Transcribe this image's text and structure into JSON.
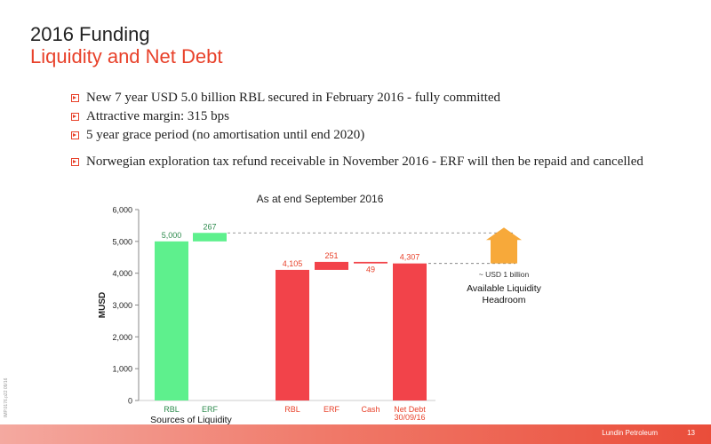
{
  "slide": {
    "title": "2016 Funding",
    "subtitle": "Liquidity and Net Debt",
    "bullets": [
      "New 7 year USD 5.0 billion RBL secured in February 2016 - fully committed",
      "Attractive margin: 315 bps",
      "5 year grace period (no amortisation until end 2020)",
      "Norwegian exploration tax refund receivable in November 2016 - ERF will then be repaid and cancelled"
    ],
    "footer_brand": "Lundin Petroleum",
    "page_number": "13",
    "side_code": "IMP.0176.p22 09/16"
  },
  "colors": {
    "green": "#5ef08d",
    "red": "#f2434a",
    "orange": "#f7a93a",
    "accent": "#e8412a",
    "green_text": "#2e8b4e",
    "red_text": "#e8412a"
  },
  "chart_data": {
    "type": "bar",
    "subtype": "waterfall",
    "title": "As at end September 2016",
    "ylabel": "MUSD",
    "ylim": [
      0,
      6000
    ],
    "yticks": [
      "0",
      "1,000",
      "2,000",
      "3,000",
      "4,000",
      "5,000",
      "6,000"
    ],
    "grid": false,
    "bars": [
      {
        "category": "RBL",
        "label": "5,000",
        "value": 5000,
        "base": 0,
        "color": "green"
      },
      {
        "category": "ERF",
        "label": "267",
        "value": 267,
        "base": 5000,
        "color": "green"
      },
      {
        "category": "RBL",
        "label": "4,105",
        "value": 4105,
        "base": 0,
        "color": "red"
      },
      {
        "category": "ERF",
        "label": "251",
        "value": 251,
        "base": 4105,
        "color": "red"
      },
      {
        "category": "Cash",
        "label": "49",
        "value": -49,
        "base": 4356,
        "color": "red"
      },
      {
        "category": "Net Debt\n30/09/16",
        "label": "4,307",
        "value": 4307,
        "base": 0,
        "color": "red"
      }
    ],
    "group_label": "Sources of Liquidity",
    "annotation": {
      "approx": "~ USD 1 billion",
      "line1": "Available Liquidity",
      "line2": "Headroom",
      "from": 4307,
      "to": 5267
    }
  }
}
